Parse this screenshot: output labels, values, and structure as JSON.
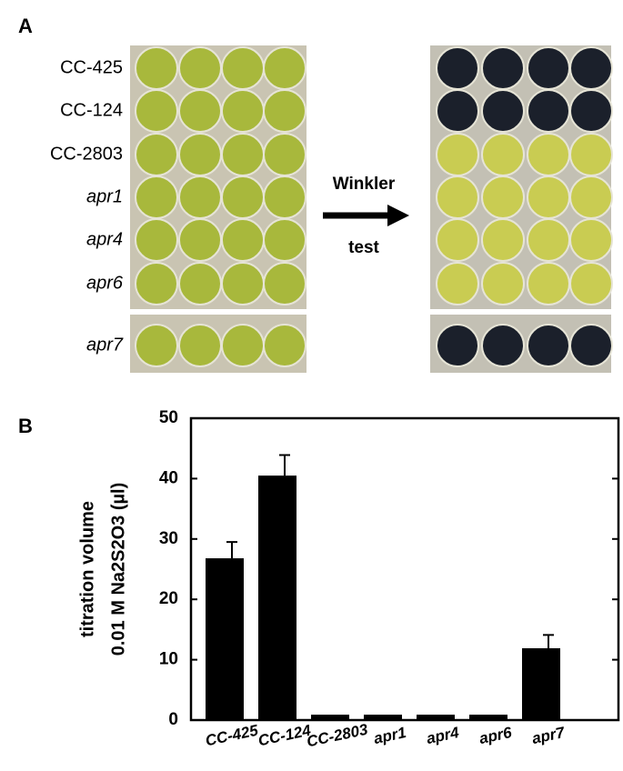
{
  "panel_a": {
    "label": "A",
    "row_labels": [
      "CC-425",
      "CC-124",
      "CC-2803",
      "apr1",
      "apr4",
      "apr6",
      "apr7"
    ],
    "arrow_top": "Winkler",
    "arrow_bottom": "test"
  },
  "panel_b_label": "B",
  "chart_data": {
    "type": "bar",
    "y_label_lines": [
      "titration volume",
      "0.01 M Na2S2O3 (µl)"
    ],
    "categories": [
      "CC-425",
      "CC-124",
      "CC-2803",
      "apr1",
      "apr4",
      "apr6",
      "apr7"
    ],
    "values": [
      26.8,
      40.5,
      0.9,
      0.9,
      0.9,
      0.9,
      11.9
    ],
    "errors": [
      2.7,
      3.4,
      null,
      null,
      null,
      null,
      2.2
    ],
    "color": "#000000",
    "ylim": [
      0,
      50
    ],
    "yticks": [
      0,
      10,
      20,
      30,
      40,
      50
    ]
  }
}
